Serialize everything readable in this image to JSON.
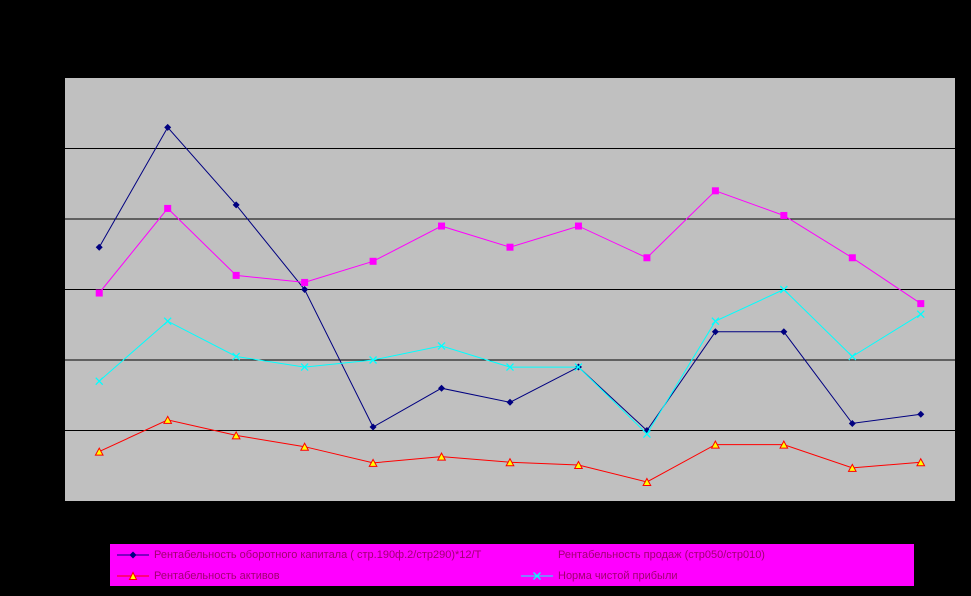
{
  "chart_data": {
    "type": "line",
    "title": "",
    "xlabel": "",
    "ylabel": "",
    "ylim": [
      0,
      6
    ],
    "grid": true,
    "legend_position": "bottom",
    "colors": {
      "background": "#000000",
      "plot_area": "#c0c0c0",
      "gridline": "#000000",
      "legend_background": "#ff00ff"
    },
    "x": [
      1,
      2,
      3,
      4,
      5,
      6,
      7,
      8,
      9,
      10,
      11,
      12,
      13
    ],
    "series": [
      {
        "name": "Рентабельность оборотного капитала ( стр.190ф.2/стр290)*12/T",
        "color": "#000080",
        "marker": "diamond",
        "values": [
          3.6,
          5.3,
          4.2,
          3.0,
          1.05,
          1.6,
          1.4,
          1.9,
          1.0,
          2.4,
          2.4,
          1.1,
          1.23
        ]
      },
      {
        "name": "Рентабельность продаж (стр050/стр010)",
        "color": "#ff00ff",
        "marker": "square",
        "values": [
          2.95,
          4.15,
          3.2,
          3.1,
          3.4,
          3.9,
          3.6,
          3.9,
          3.45,
          4.4,
          4.05,
          3.45,
          2.8
        ]
      },
      {
        "name": "Рентабельность активов",
        "color": "#ff0000",
        "marker": "triangle",
        "values": [
          0.7,
          1.15,
          0.93,
          0.77,
          0.54,
          0.63,
          0.55,
          0.51,
          0.27,
          0.8,
          0.8,
          0.47,
          0.55
        ]
      },
      {
        "name": "Норма чистой прибыли",
        "color": "#00ffff",
        "marker": "x",
        "values": [
          1.7,
          2.55,
          2.05,
          1.9,
          2.0,
          2.2,
          1.9,
          1.9,
          0.95,
          2.55,
          3.0,
          2.05,
          2.65
        ]
      }
    ]
  }
}
